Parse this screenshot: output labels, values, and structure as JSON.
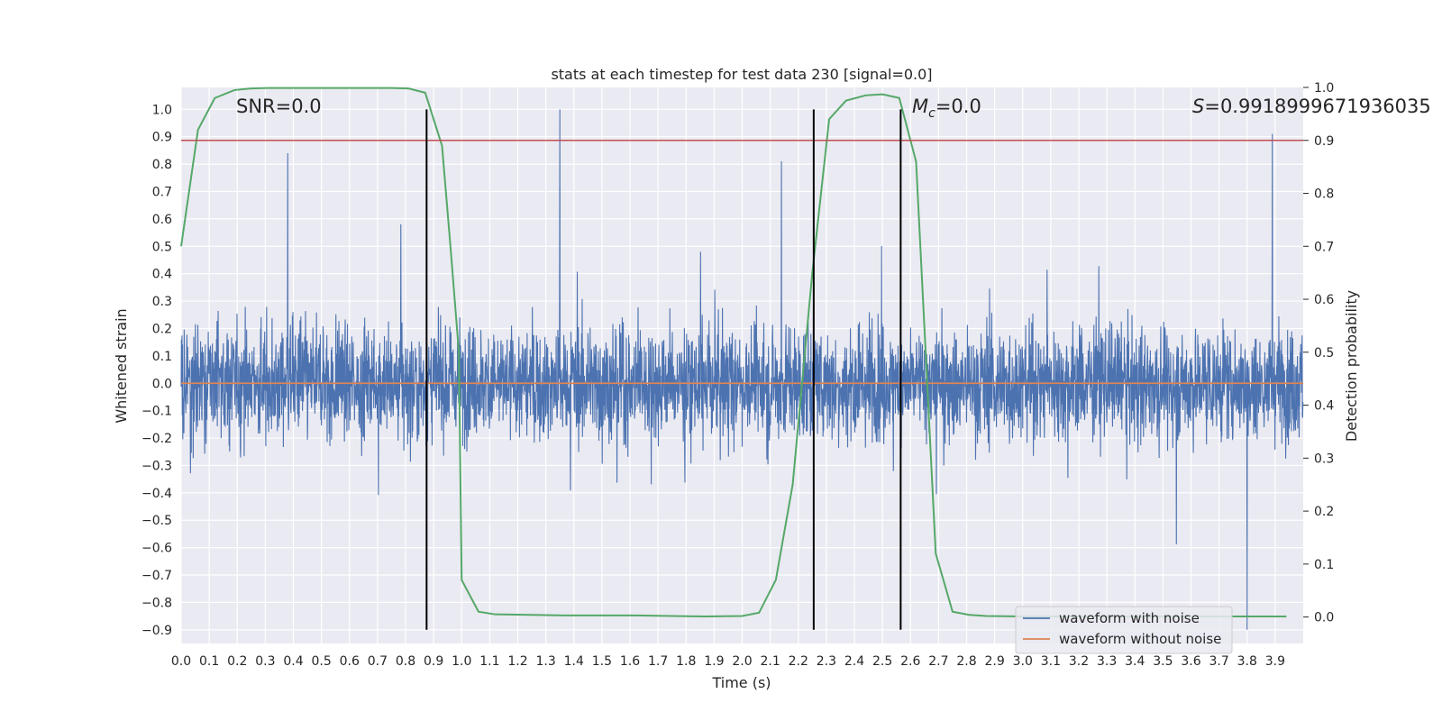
{
  "chart_data": {
    "type": "line",
    "title": "stats at each timestep for test data 230 [signal=0.0]",
    "xlabel": "Time (s)",
    "ylabel_left": "Whitened strain",
    "ylabel_right": "Detection probability",
    "xlim": [
      0,
      4.0
    ],
    "ylim_left": [
      -0.95,
      1.08
    ],
    "ylim_right": [
      -0.05,
      1.0
    ],
    "x_ticks": [
      "0.0",
      "0.1",
      "0.2",
      "0.3",
      "0.4",
      "0.5",
      "0.6",
      "0.7",
      "0.8",
      "0.9",
      "1.0",
      "1.1",
      "1.2",
      "1.3",
      "1.4",
      "1.5",
      "1.6",
      "1.7",
      "1.8",
      "1.9",
      "2.0",
      "2.1",
      "2.2",
      "2.3",
      "2.4",
      "2.5",
      "2.6",
      "2.7",
      "2.8",
      "2.9",
      "3.0",
      "3.1",
      "3.2",
      "3.3",
      "3.4",
      "3.5",
      "3.6",
      "3.7",
      "3.8",
      "3.9"
    ],
    "y_ticks_left": [
      "1.0",
      "0.9",
      "0.8",
      "0.7",
      "0.6",
      "0.5",
      "0.4",
      "0.3",
      "0.2",
      "0.1",
      "0.0",
      "-0.1",
      "-0.2",
      "-0.3",
      "-0.4",
      "-0.5",
      "-0.6",
      "-0.7",
      "-0.8",
      "-0.9"
    ],
    "y_ticks_right": [
      "1.0",
      "0.9",
      "0.8",
      "0.7",
      "0.6",
      "0.5",
      "0.4",
      "0.3",
      "0.2",
      "0.1",
      "0.0"
    ],
    "grid": true,
    "annotations": {
      "snr": "SNR=0.0",
      "mc_symbol": "M",
      "mc_sub": "c",
      "mc_value": "=0.0",
      "s_symbol": "S",
      "s_value": "=0.9918999671936035"
    },
    "threshold_right": 0.9,
    "vertical_lines_x": [
      0.875,
      2.255,
      2.565
    ],
    "vertical_lines_range_left": [
      -0.9,
      1.0
    ],
    "series": [
      {
        "name": "waveform with noise",
        "axis": "left",
        "color": "#4c72b0",
        "amplitude_range": [
          -0.75,
          1.0
        ],
        "noted_peaks": [
          [
            0.38,
            0.84
          ],
          [
            1.35,
            1.0
          ],
          [
            2.14,
            0.81
          ],
          [
            3.89,
            0.91
          ],
          [
            3.8,
            -0.9
          ]
        ]
      },
      {
        "name": "waveform without noise",
        "axis": "left",
        "color": "#dd8452",
        "constant_value": 0.0
      },
      {
        "axis": "right",
        "color": "#55a868",
        "x": [
          0.0,
          0.06,
          0.12,
          0.19,
          0.25,
          0.31,
          0.37,
          0.44,
          0.5,
          0.56,
          0.62,
          0.69,
          0.75,
          0.81,
          0.87,
          0.93,
          0.96,
          0.99,
          1.0,
          1.06,
          1.12,
          1.25,
          1.37,
          1.5,
          1.62,
          1.75,
          1.87,
          2.0,
          2.06,
          2.12,
          2.18,
          2.25,
          2.31,
          2.37,
          2.44,
          2.5,
          2.56,
          2.62,
          2.69,
          2.75,
          2.81,
          2.87,
          3.0,
          3.5,
          3.94
        ],
        "y": [
          0.7,
          0.92,
          0.98,
          0.995,
          0.998,
          0.999,
          0.999,
          0.999,
          0.999,
          0.999,
          0.999,
          0.999,
          0.999,
          0.998,
          0.99,
          0.89,
          0.7,
          0.5,
          0.07,
          0.01,
          0.005,
          0.004,
          0.003,
          0.003,
          0.003,
          0.002,
          0.001,
          0.002,
          0.008,
          0.07,
          0.25,
          0.65,
          0.94,
          0.975,
          0.985,
          0.987,
          0.98,
          0.86,
          0.12,
          0.01,
          0.004,
          0.002,
          0.001,
          0.001,
          0.001
        ]
      }
    ],
    "legend": {
      "placement": "lower-right",
      "entries": [
        "waveform with noise",
        "waveform without noise"
      ]
    },
    "colors": {
      "background": "#eaeaf2",
      "grid": "#ffffff",
      "threshold": "#c44e52",
      "vline": "#000000"
    }
  }
}
